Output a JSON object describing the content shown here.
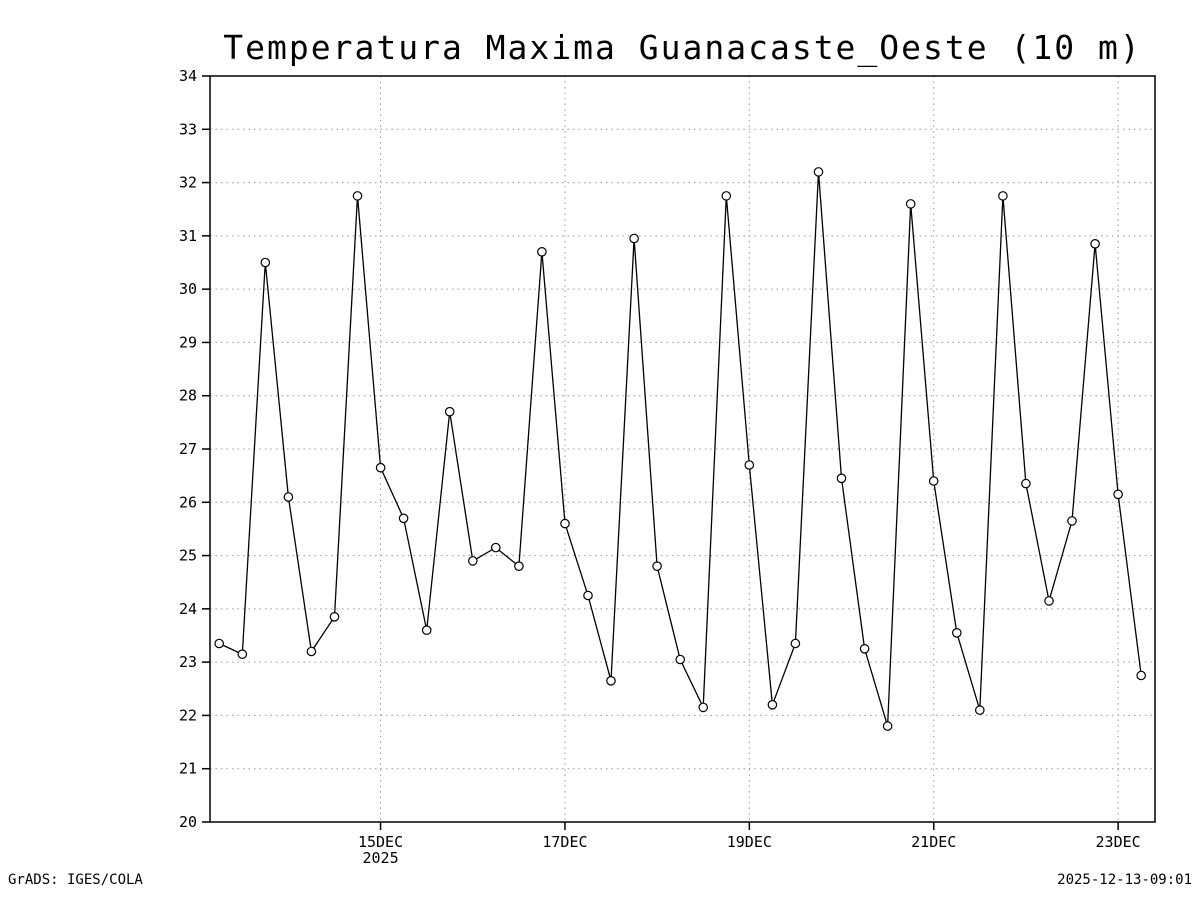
{
  "footer": {
    "left": "GrADS: IGES/COLA",
    "right": "2025-12-13-09:01"
  },
  "chart_data": {
    "type": "line",
    "title": "Temperatura Maxima Guanacaste_Oeste (10 m)",
    "ylabel": "",
    "xlabel": "",
    "ylim": [
      20,
      34
    ],
    "ytick_step": 1,
    "x_domain": [
      -0.4,
      40.6
    ],
    "marker": "open-circle",
    "line_color": "#000000",
    "grid": "dotted",
    "x_ticks": [
      {
        "label": "15DEC",
        "sublabel": "2025",
        "index": 7
      },
      {
        "label": "17DEC",
        "index": 15
      },
      {
        "label": "19DEC",
        "index": 23
      },
      {
        "label": "21DEC",
        "index": 31
      },
      {
        "label": "23DEC",
        "index": 39
      }
    ],
    "values": [
      23.35,
      23.15,
      30.5,
      26.1,
      23.2,
      23.85,
      31.75,
      26.65,
      25.7,
      23.6,
      27.7,
      24.9,
      25.15,
      24.8,
      30.7,
      25.6,
      24.25,
      22.65,
      30.95,
      24.8,
      23.05,
      22.15,
      31.75,
      26.7,
      22.2,
      23.35,
      32.2,
      26.45,
      23.25,
      21.8,
      31.6,
      26.4,
      23.55,
      22.1,
      31.75,
      26.35,
      24.15,
      25.65,
      30.85,
      26.15,
      22.75
    ]
  }
}
